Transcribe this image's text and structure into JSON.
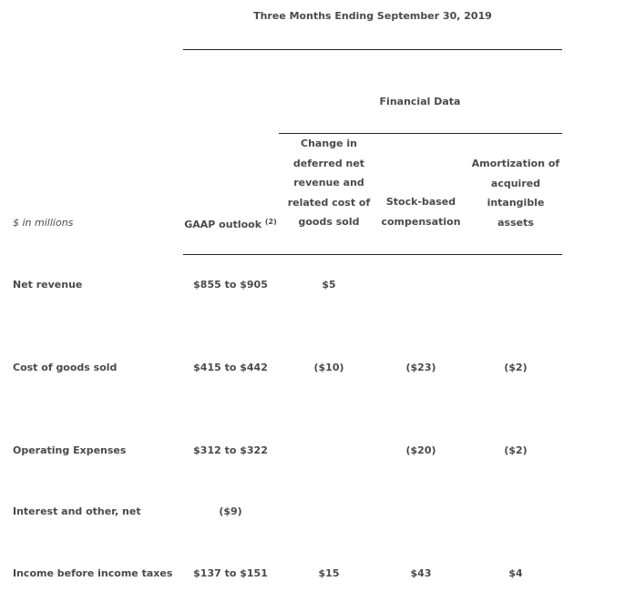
{
  "title": "Three Months Ending September 30, 2019",
  "group_header": "Financial Data",
  "units_label": "$ in millions",
  "columns": [
    {
      "label": "GAAP outlook",
      "footnote": "(2)"
    },
    {
      "lines": [
        "Change in",
        "deferred net",
        "revenue and",
        "related cost of",
        "goods sold"
      ]
    },
    {
      "lines": [
        "Stock-based",
        "compensation"
      ]
    },
    {
      "lines": [
        "Amortization of",
        "acquired",
        "intangible",
        "assets"
      ]
    }
  ],
  "rows": [
    {
      "label": "Net revenue",
      "values": [
        "$855 to $905",
        "$5",
        "",
        ""
      ]
    },
    {
      "label": "Cost of goods sold",
      "values": [
        "$415 to $442",
        "($10)",
        "($23)",
        "($2)"
      ]
    },
    {
      "label": "Operating Expenses",
      "values": [
        "$312 to $322",
        "",
        "($20)",
        "($2)"
      ]
    },
    {
      "label": "Interest and other, net",
      "values": [
        "($9)",
        "",
        "",
        ""
      ]
    },
    {
      "label": "Income before income taxes",
      "values": [
        "$137 to $151",
        "$15",
        "$43",
        "$4"
      ]
    }
  ]
}
